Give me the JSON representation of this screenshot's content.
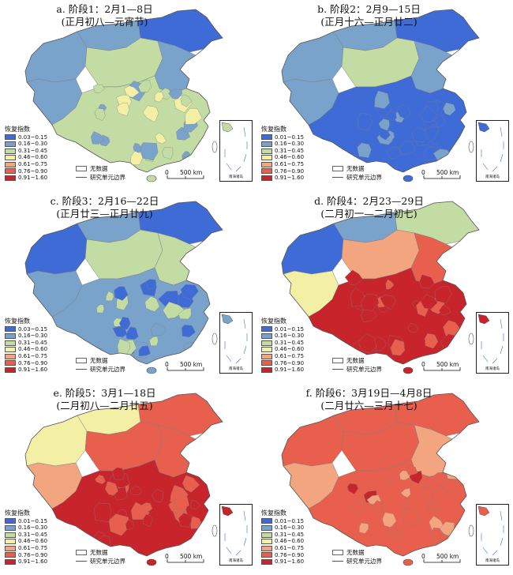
{
  "colors": {
    "c1": "#3e6bd6",
    "c2": "#7aa3cc",
    "c3": "#c2dca4",
    "c4": "#f3f0a6",
    "c5": "#f3a57f",
    "c6": "#e8604d",
    "c7": "#c8242b",
    "boundary": "#7f7f7f",
    "nodata": "#ffffff"
  },
  "legend_title": "恢复指数",
  "no_data_label": "无数据",
  "boundary_label": "研究单元边界",
  "scale_label": "500 km",
  "scale_zero": "0",
  "inset_label": "南海诸岛",
  "panels": [
    {
      "title_line1": "a. 阶段1：2月1—8日",
      "title_line2": "(正月初八—元宵节)",
      "legend_ranges": [
        "0.03~0.15",
        "0.16~0.30",
        "0.31~0.45",
        "0.46~0.60",
        "0.61~0.75",
        "0.76~0.90",
        "0.91~1.60"
      ],
      "dominant": [
        "c2",
        "c2",
        "c1",
        "c2",
        "c3",
        "c2",
        "c3"
      ]
    },
    {
      "title_line1": "b. 阶段2：2月9—15日",
      "title_line2": "(正月十六—正月廿二)",
      "legend_ranges": [
        "0.01~0.15",
        "0.16~0.30",
        "0.31~0.45",
        "0.46~0.60",
        "0.61~0.75",
        "0.76~0.90",
        "0.91~1.60"
      ],
      "dominant": [
        "c2",
        "c2",
        "c1",
        "c2",
        "c3",
        "c2",
        "c1"
      ]
    },
    {
      "title_line1": "c. 阶段3：2月16—22日",
      "title_line2": "(正月廿三—正月廿九)",
      "legend_ranges": [
        "0.03~0.15",
        "0.16~0.30",
        "0.31~0.45",
        "0.46~0.60",
        "0.61~0.75",
        "0.76~0.90",
        "0.91~1.60"
      ],
      "dominant": [
        "c1",
        "c2",
        "c1",
        "c2",
        "c3",
        "c3",
        "c2"
      ]
    },
    {
      "title_line1": "d. 阶段4：2月23—29日",
      "title_line2": "(二月初一—二月初七)",
      "legend_ranges": [
        "0.01~0.15",
        "0.16~0.30",
        "0.31~0.45",
        "0.46~0.60",
        "0.61~0.75",
        "0.76~0.90",
        "0.91~1.60"
      ],
      "dominant": [
        "c1",
        "c2",
        "c3",
        "c4",
        "c5",
        "c6",
        "c7"
      ]
    },
    {
      "title_line1": "e. 阶段5：3月1—18日",
      "title_line2": "(二月初八—二月廿五)",
      "legend_ranges": [
        "0.01~0.15",
        "0.16~0.30",
        "0.31~0.45",
        "0.46~0.60",
        "0.61~0.75",
        "0.76~0.90",
        "0.91~1.60"
      ],
      "dominant": [
        "c4",
        "c4",
        "c6",
        "c5",
        "c6",
        "c6",
        "c7"
      ]
    },
    {
      "title_line1": "f. 阶段6：3月19日—4月8日",
      "title_line2": "(二月廿六—三月十七)",
      "legend_ranges": [
        "0.01~0.15",
        "0.16~0.30",
        "0.31~0.45",
        "0.46~0.60",
        "0.61~0.75",
        "0.76~0.90",
        "0.91~1.60"
      ],
      "dominant": [
        "c6",
        "c6",
        "c6",
        "c5",
        "c6",
        "c5",
        "c6"
      ]
    }
  ]
}
